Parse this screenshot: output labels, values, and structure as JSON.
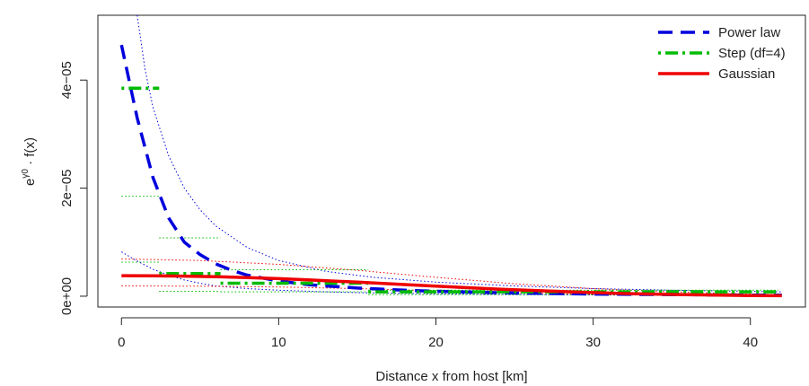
{
  "chart_data": {
    "type": "line",
    "title": "",
    "xlabel": "Distance x from host [km]",
    "ylabel": "e^{γ₀} · f(x)",
    "ylabel_parts": {
      "base": "e",
      "sup": "γ0",
      "rest": " · f(x)"
    },
    "xlim": [
      -1.5,
      43.5
    ],
    "ylim": [
      -2e-06,
      5.2e-05
    ],
    "x_ticks": [
      0,
      10,
      20,
      30,
      40
    ],
    "x_tick_labels": [
      "0",
      "10",
      "20",
      "30",
      "40"
    ],
    "y_ticks": [
      0,
      2e-05,
      4e-05
    ],
    "y_tick_labels": [
      "0e+00",
      "2e−05",
      "4e−05"
    ],
    "legend_position": "top-right",
    "colors": {
      "power": "#0000dd",
      "step": "#00bb00",
      "gauss": "#ee0000"
    },
    "series": [
      {
        "name": "Power law",
        "style": "dashed",
        "x": [
          0,
          1,
          2,
          3,
          4,
          5,
          6,
          7,
          8,
          10,
          12,
          15,
          18,
          20,
          25,
          30,
          35,
          40,
          42
        ],
        "y": [
          4.65e-05,
          3.3e-05,
          2.2e-05,
          1.45e-05,
          1e-05,
          7.7e-06,
          6e-06,
          4.8e-06,
          3.9e-06,
          2.8e-06,
          2.1e-06,
          1.5e-06,
          1.1e-06,
          9e-07,
          6e-07,
          4e-07,
          3e-07,
          2e-07,
          2e-07
        ]
      },
      {
        "name": "Step (df=4)",
        "style": "dotdash",
        "segments": [
          {
            "x": [
              0,
              2.4
            ],
            "y": [
              3.85e-05,
              3.85e-05
            ]
          },
          {
            "x": [
              2.4,
              6.3
            ],
            "y": [
              4.2e-06,
              4.2e-06
            ]
          },
          {
            "x": [
              6.3,
              15.7
            ],
            "y": [
              2.4e-06,
              2.4e-06
            ]
          },
          {
            "x": [
              15.7,
              41.8
            ],
            "y": [
              8e-07,
              8e-07
            ]
          }
        ]
      },
      {
        "name": "Gaussian",
        "style": "solid",
        "x": [
          0,
          2,
          4,
          6,
          8,
          10,
          12,
          15,
          18,
          20,
          24,
          28,
          32,
          36,
          40,
          42
        ],
        "y": [
          3.8e-06,
          3.78e-06,
          3.72e-06,
          3.6e-06,
          3.45e-06,
          3.25e-06,
          3e-06,
          2.6e-06,
          2.15e-06,
          1.85e-06,
          1.3e-06,
          8.5e-07,
          5e-07,
          2.7e-07,
          1.3e-07,
          9e-08
        ]
      }
    ],
    "bands": [
      {
        "series": "Power law",
        "bound": "upper",
        "x": [
          1.0,
          1.5,
          2,
          3,
          4,
          5,
          6,
          8,
          10,
          13,
          16,
          20,
          25,
          30,
          35,
          40,
          42
        ],
        "y": [
          5.2e-05,
          4.2e-05,
          3.5e-05,
          2.6e-05,
          2e-05,
          1.6e-05,
          1.3e-05,
          9e-06,
          6.6e-06,
          4.6e-06,
          3.5e-06,
          2.6e-06,
          1.9e-06,
          1.4e-06,
          1.1e-06,
          9e-07,
          8e-07
        ]
      },
      {
        "series": "Power law",
        "bound": "lower",
        "x": [
          0,
          1,
          2,
          3,
          4,
          5,
          6,
          8,
          10,
          13,
          16,
          20,
          25,
          30,
          35,
          40,
          42
        ],
        "y": [
          8.2e-06,
          6.5e-06,
          5e-06,
          3.9e-06,
          3e-06,
          2.4e-06,
          1.9e-06,
          1.4e-06,
          1.1e-06,
          8e-07,
          6e-07,
          4.5e-07,
          3.3e-07,
          2.5e-07,
          2e-07,
          1.6e-07,
          1.5e-07
        ]
      },
      {
        "series": "Gaussian",
        "bound": "upper",
        "x": [
          0,
          5,
          10,
          15,
          20,
          25,
          30,
          35,
          40,
          42
        ],
        "y": [
          6.9e-06,
          6.6e-06,
          5.9e-06,
          4.8e-06,
          3.5e-06,
          2.3e-06,
          1.4e-06,
          8e-07,
          4e-07,
          3e-07
        ]
      },
      {
        "series": "Gaussian",
        "bound": "lower",
        "x": [
          0,
          5,
          10,
          15,
          20,
          25,
          30,
          35,
          40,
          42
        ],
        "y": [
          1.9e-06,
          1.85e-06,
          1.7e-06,
          1.4e-06,
          1e-06,
          6.5e-07,
          3.5e-07,
          1.6e-07,
          6e-08,
          4e-08
        ]
      },
      {
        "series": "Step (df=4)",
        "bound": "interval",
        "x": [
          0,
          2.4
        ],
        "y": [
          1.85e-05,
          1.85e-05
        ]
      },
      {
        "series": "Step (df=4)",
        "bound": "interval",
        "x": [
          2.4,
          6.3
        ],
        "y": [
          1.08e-05,
          1.08e-05
        ]
      },
      {
        "series": "Step (df=4)",
        "bound": "interval",
        "x": [
          6.3,
          15.7
        ],
        "y": [
          4.9e-06,
          4.9e-06
        ]
      },
      {
        "series": "Step (df=4)",
        "bound": "interval",
        "x": [
          15.7,
          41.8
        ],
        "y": [
          1.1e-06,
          1.1e-06
        ]
      },
      {
        "series": "Step (df=4)",
        "bound": "interval",
        "x": [
          0,
          2.4
        ],
        "y": [
          6.3e-06,
          6.3e-06
        ]
      },
      {
        "series": "Step (df=4)",
        "bound": "interval",
        "x": [
          2.4,
          6.3
        ],
        "y": [
          9e-07,
          9e-07
        ]
      },
      {
        "series": "Step (df=4)",
        "bound": "interval",
        "x": [
          6.3,
          15.7
        ],
        "y": [
          8e-07,
          8e-07
        ]
      },
      {
        "series": "Step (df=4)",
        "bound": "interval",
        "x": [
          15.7,
          41.8
        ],
        "y": [
          3e-07,
          3e-07
        ]
      }
    ]
  }
}
